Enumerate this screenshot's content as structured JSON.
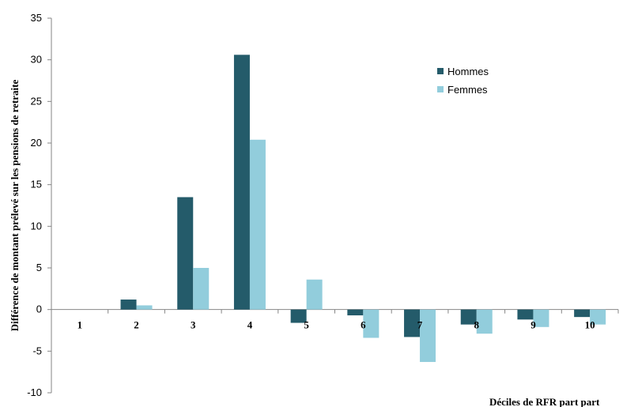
{
  "chart_data": {
    "type": "bar",
    "title": "",
    "categories": [
      "1",
      "2",
      "3",
      "4",
      "5",
      "6",
      "7",
      "8",
      "9",
      "10"
    ],
    "series": [
      {
        "name": "Hommes",
        "color": "#245B6A",
        "values": [
          0,
          1.2,
          13.5,
          30.6,
          -1.6,
          -0.7,
          -3.3,
          -1.8,
          -1.2,
          -0.9
        ]
      },
      {
        "name": "Femmes",
        "color": "#92CDDC",
        "values": [
          0,
          0.5,
          5.0,
          20.4,
          3.6,
          -3.4,
          -6.3,
          -2.9,
          -2.1,
          -1.8
        ]
      }
    ],
    "xlabel": "Déciles de RFR part part",
    "ylabel": "Différence de montant prélevé sur les pensions de retraite",
    "ylim": [
      -10,
      35
    ],
    "yticks": [
      -10,
      -5,
      0,
      5,
      10,
      15,
      20,
      25,
      30,
      35
    ],
    "grid": false,
    "legend": "top-right"
  }
}
